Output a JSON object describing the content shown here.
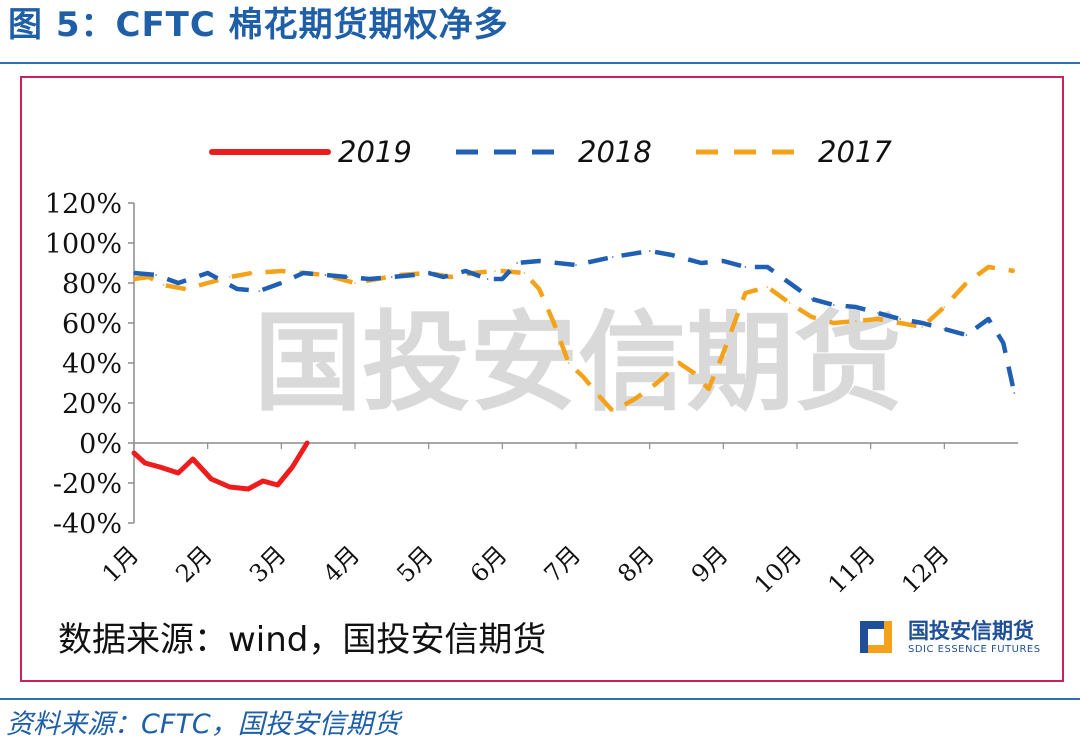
{
  "figure_title": "图 5：CFTC 棉花期货期权净多",
  "source_inner": "数据来源：wind，国投安信期货",
  "source_outer": "资料来源：CFTC，国投安信期货",
  "watermark": "国投安信期货",
  "logo": {
    "name_cn": "国投安信期货",
    "name_en": "SDIC ESSENCE FUTURES",
    "icon": "sdic-logo-icon"
  },
  "colors": {
    "title": "#1f5fa8",
    "frame": "#c8235c",
    "series_2019": "#ee1c1c",
    "series_2018": "#1f5fb4",
    "series_2017": "#f4a21a",
    "watermark": "#d9d9d9"
  },
  "chart_data": {
    "type": "line",
    "title": "",
    "xlabel": "",
    "ylabel": "",
    "ylim": [
      -40,
      120
    ],
    "yticks": [
      "120%",
      "100%",
      "80%",
      "60%",
      "40%",
      "20%",
      "0%",
      "-20%",
      "-40%"
    ],
    "categories": [
      "1月",
      "2月",
      "3月",
      "4月",
      "5月",
      "6月",
      "7月",
      "8月",
      "9月",
      "10月",
      "11月",
      "12月"
    ],
    "legend_position": "top",
    "grid": false,
    "series": [
      {
        "name": "2019",
        "style": "solid",
        "x": [
          1.0,
          1.15,
          1.35,
          1.6,
          1.8,
          2.05,
          2.3,
          2.55,
          2.75,
          2.95,
          3.15,
          3.35
        ],
        "values": [
          -5,
          -10,
          -12,
          -15,
          -8,
          -18,
          -22,
          -23,
          -19,
          -21,
          -12,
          0
        ]
      },
      {
        "name": "2018",
        "style": "dashed",
        "x": [
          1.0,
          1.3,
          1.6,
          2.0,
          2.4,
          2.7,
          3.0,
          3.3,
          3.6,
          3.9,
          4.2,
          4.5,
          4.8,
          5.0,
          5.2,
          5.5,
          5.8,
          6.0,
          6.2,
          6.5,
          7.0,
          7.5,
          8.0,
          8.3,
          8.7,
          9.0,
          9.3,
          9.6,
          9.9,
          10.2,
          10.5,
          10.8,
          11.1,
          11.4,
          11.7,
          12.0,
          12.3,
          12.6,
          12.8,
          12.95
        ],
        "values": [
          85,
          84,
          80,
          85,
          77,
          76,
          80,
          85,
          84,
          83,
          82,
          83,
          84,
          85,
          83,
          86,
          82,
          82,
          90,
          91,
          89,
          93,
          96,
          94,
          90,
          91,
          88,
          88,
          80,
          72,
          69,
          68,
          65,
          62,
          60,
          57,
          54,
          62,
          50,
          25
        ]
      },
      {
        "name": "2017",
        "style": "dashed",
        "x": [
          1.0,
          1.2,
          1.4,
          1.7,
          2.0,
          2.3,
          2.6,
          3.0,
          3.3,
          3.6,
          4.0,
          4.3,
          4.6,
          5.0,
          5.3,
          5.6,
          5.9,
          6.0,
          6.3,
          6.5,
          6.7,
          6.9,
          7.1,
          7.3,
          7.5,
          7.8,
          8.1,
          8.4,
          8.6,
          8.8,
          9.0,
          9.3,
          9.6,
          9.9,
          10.2,
          10.5,
          10.8,
          11.1,
          11.4,
          11.7,
          12.0,
          12.3,
          12.6,
          12.95
        ],
        "values": [
          82,
          83,
          79,
          77,
          80,
          83,
          85,
          86,
          85,
          84,
          80,
          82,
          84,
          85,
          83,
          85,
          86,
          86,
          85,
          77,
          60,
          40,
          33,
          24,
          16,
          22,
          30,
          40,
          35,
          27,
          45,
          75,
          78,
          70,
          63,
          60,
          61,
          62,
          60,
          58,
          68,
          80,
          88,
          86
        ]
      }
    ]
  }
}
